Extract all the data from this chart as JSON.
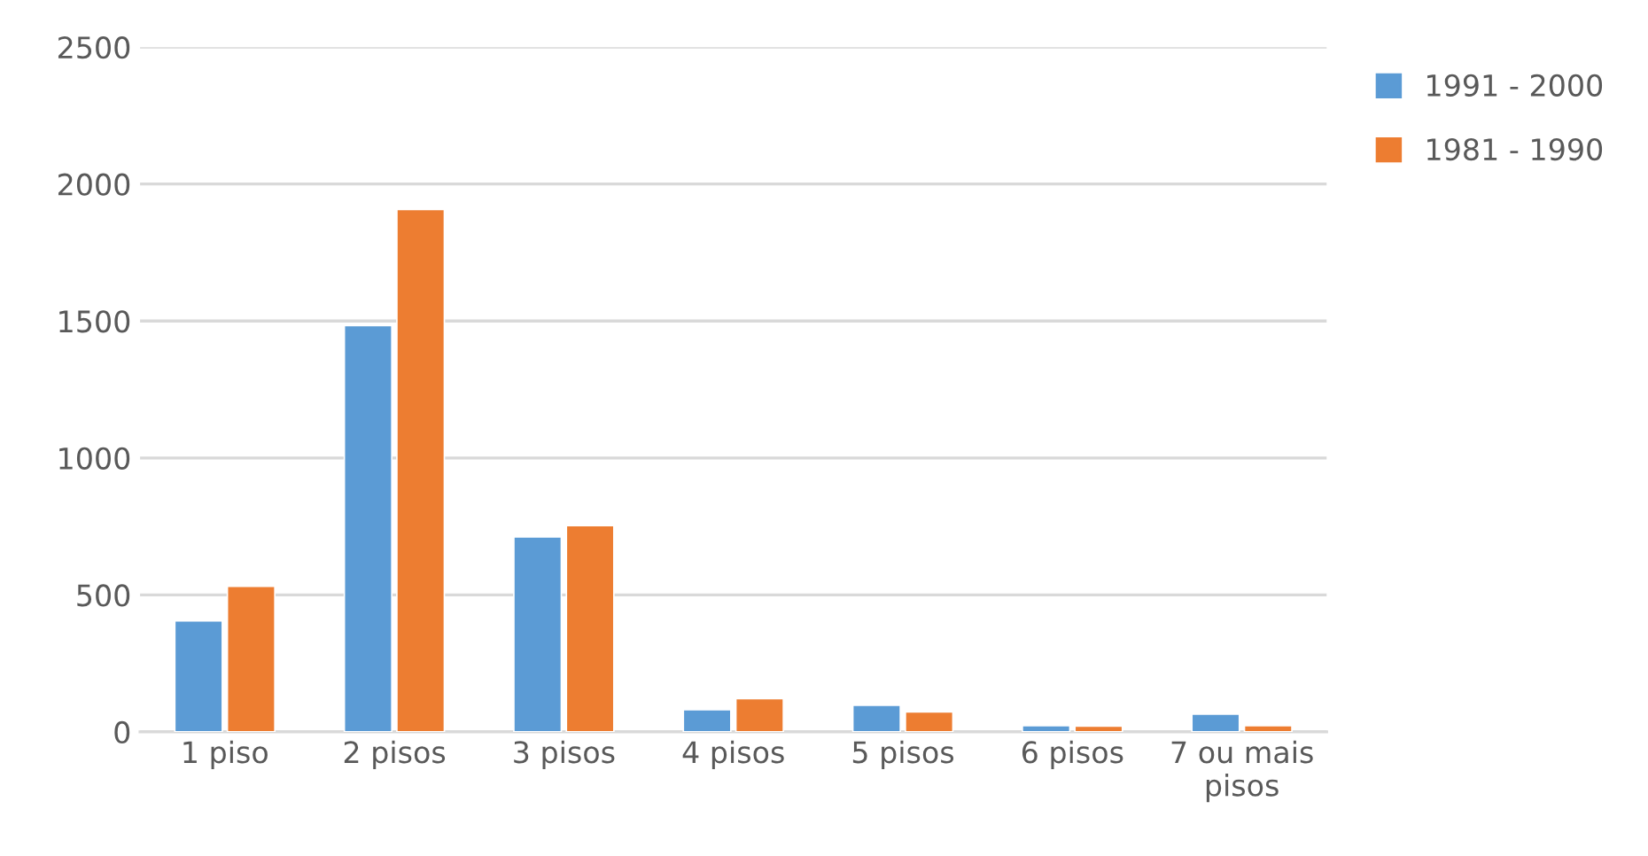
{
  "chart_data": {
    "type": "bar",
    "categories": [
      "1 piso",
      "2 pisos",
      "3 pisos",
      "4 pisos",
      "5 pisos",
      "6 pisos",
      "7 ou mais pisos"
    ],
    "series": [
      {
        "name": "1991 - 2000",
        "color": "#5b9bd5",
        "values": [
          405,
          1483,
          712,
          81,
          97,
          23,
          65
        ]
      },
      {
        "name": "1981 - 1990",
        "color": "#ed7d31",
        "values": [
          531,
          1907,
          753,
          121,
          73,
          21,
          23
        ]
      }
    ],
    "ylim": [
      0,
      2500
    ],
    "yticks": [
      0,
      500,
      1000,
      1500,
      2000,
      2500
    ],
    "grid": "y",
    "legend": "right"
  }
}
